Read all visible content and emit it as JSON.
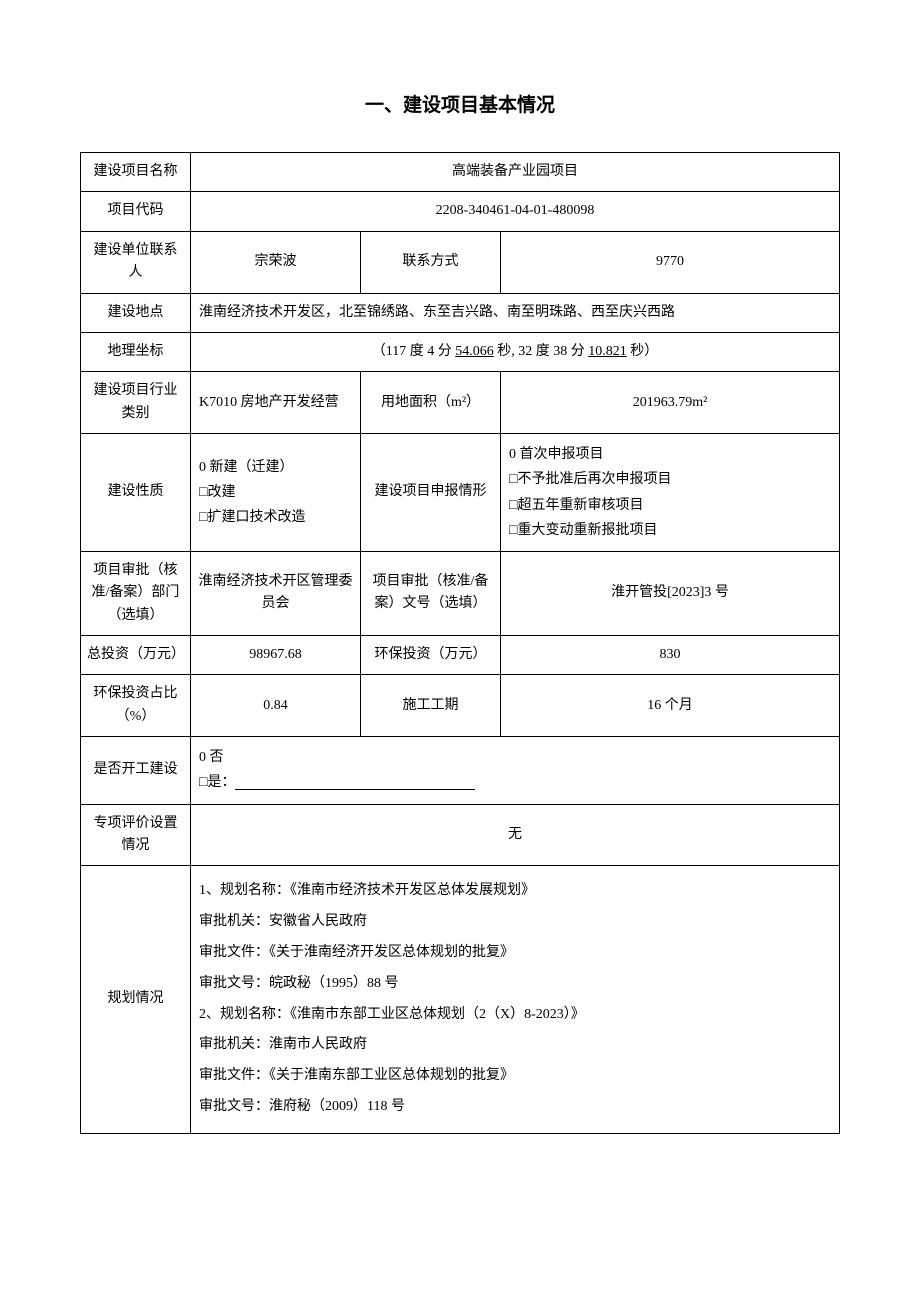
{
  "title": "一、建设项目基本情况",
  "rows": {
    "project_name_label": "建设项目名称",
    "project_name_value": "高端装备产业园项目",
    "project_code_label": "项目代码",
    "project_code_value": "2208-340461-04-01-480098",
    "contact_person_label": "建设单位联系人",
    "contact_person_value": "宗荣波",
    "contact_method_label": "联系方式",
    "contact_method_value": "9770",
    "location_label": "建设地点",
    "location_value": "淮南经济技术开发区，北至锦绣路、东至吉兴路、南至明珠路、西至庆兴西路",
    "coordinates_label": "地理坐标",
    "coordinates_prefix": "（117 度 4 分 ",
    "coordinates_sec1": "54.066",
    "coordinates_mid": " 秒, 32 度 38 分 ",
    "coordinates_sec2": "10.821",
    "coordinates_suffix": " 秒）",
    "industry_label": "建设项目行业类别",
    "industry_value": "K7010 房地产开发经营",
    "land_area_label": "用地面积（m²）",
    "land_area_value": "201963.79m²",
    "nature_label": "建设性质",
    "nature_opt1": "0 新建（迁建）",
    "nature_opt2": "□改建",
    "nature_opt3": "□扩建口技术改造",
    "declare_type_label": "建设项目申报情形",
    "declare_opt1": "0 首次申报项目",
    "declare_opt2": "□不予批准后再次申报项目",
    "declare_opt3": "□超五年重新审核项目",
    "declare_opt4": "□重大变动重新报批项目",
    "approval_dept_label": "项目审批（核准/备案）部门（选填）",
    "approval_dept_value": "淮南经济技术开区管理委员会",
    "approval_doc_label": "项目审批（核准/备案）文号（选填）",
    "approval_doc_value": "淮开管投[2023]3 号",
    "total_invest_label": "总投资（万元）",
    "total_invest_value": "98967.68",
    "env_invest_label": "环保投资（万元）",
    "env_invest_value": "830",
    "env_ratio_label": "环保投资占比（%）",
    "env_ratio_value": "0.84",
    "construction_period_label": "施工工期",
    "construction_period_value": "16 个月",
    "started_label": "是否开工建设",
    "started_opt1": "0 否",
    "started_opt2": "□是：",
    "special_eval_label": "专项评价设置情况",
    "special_eval_value": "无",
    "planning_label": "规划情况",
    "planning_line1": "1、规划名称：《淮南市经济技术开发区总体发展规划》",
    "planning_line2": "审批机关：安徽省人民政府",
    "planning_line3": "审批文件：《关于淮南经济开发区总体规划的批复》",
    "planning_line4": "审批文号：皖政秘（1995）88 号",
    "planning_line5": "2、规划名称：《淮南市东部工业区总体规划（2（X）8-2023）》",
    "planning_line6": "审批机关：淮南市人民政府",
    "planning_line7": "审批文件：《关于淮南东部工业区总体规划的批复》",
    "planning_line8": "审批文号：淮府秘（2009）118 号"
  },
  "styling": {
    "background_color": "#ffffff",
    "text_color": "#000000",
    "border_color": "#000000",
    "title_fontsize": 19,
    "cell_fontsize": 14,
    "font_family": "SimSun"
  }
}
